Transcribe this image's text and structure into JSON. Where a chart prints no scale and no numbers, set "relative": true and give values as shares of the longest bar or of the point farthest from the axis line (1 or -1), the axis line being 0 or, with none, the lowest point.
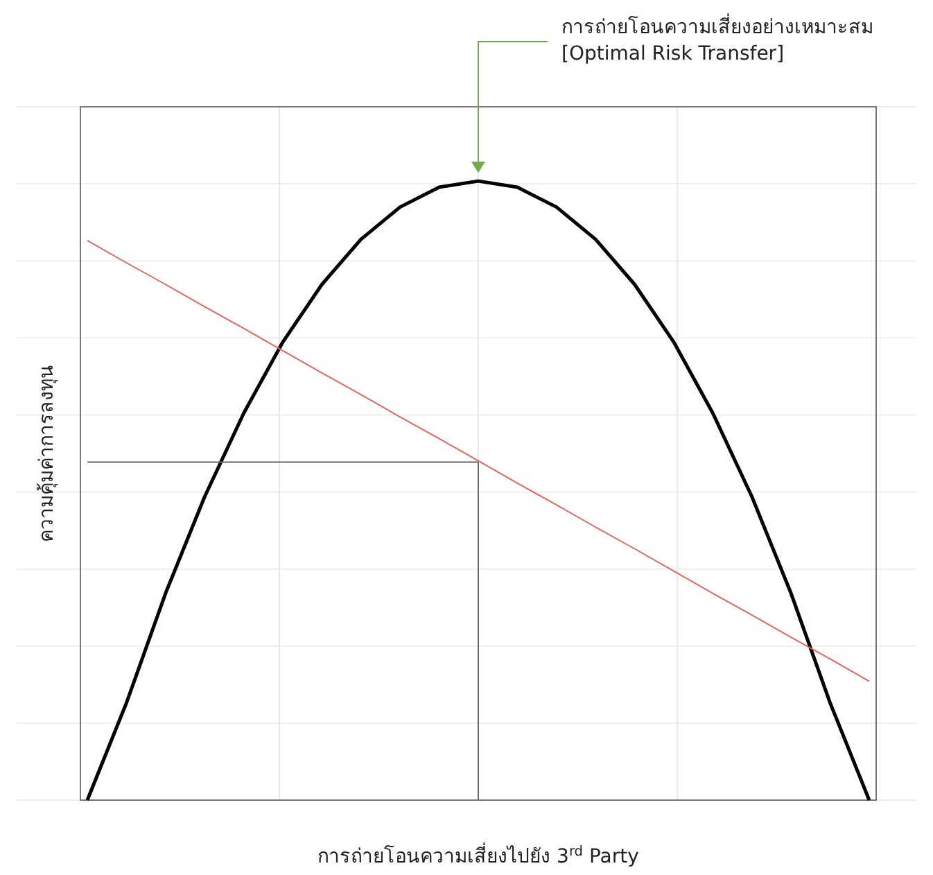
{
  "chart_data": {
    "type": "line",
    "relative": true,
    "grid": true,
    "marker": "none",
    "line_style": "solid",
    "xlabel": "การถ่ายโอนความเสี่ยงไปยัง 3$^{rd}$ Party",
    "ylabel": "ความคุ้มค่าการลงทุน",
    "annotations": [
      "การถ่ายโอนความเสี่ยงอย่างเหมาะสม\n[Optimal Risk Transfer]"
    ],
    "categories": [
      null,
      null,
      null,
      null,
      null,
      null,
      null,
      null,
      null,
      null,
      null,
      null,
      null,
      null,
      null,
      null,
      null,
      null,
      null,
      null,
      null
    ],
    "series": [
      {
        "color": "#000000",
        "values": [
          0,
          0.157,
          0.334,
          0.49,
          0.625,
          0.74,
          0.833,
          0.906,
          0.958,
          0.99,
          1,
          0.99,
          0.958,
          0.906,
          0.833,
          0.74,
          0.625,
          0.49,
          0.334,
          0.157,
          0
        ]
      },
      {
        "color": "#e06666",
        "values": [
          0.904,
          0.868,
          0.833,
          0.797,
          0.762,
          0.726,
          0.69,
          0.655,
          0.619,
          0.584,
          0.548,
          0.512,
          0.477,
          0.441,
          0.406,
          0.37,
          0.334,
          0.299,
          0.263,
          0.228,
          0.192
        ]
      },
      {
        "color": "#666666",
        "values": [
          0.546,
          0.546,
          0.546,
          0.546,
          0.546,
          0.546,
          0.546,
          0.546,
          0.546,
          0.546,
          0.546,
          null,
          null,
          null,
          null,
          null,
          null,
          null,
          null,
          null,
          null
        ]
      }
    ]
  }
}
